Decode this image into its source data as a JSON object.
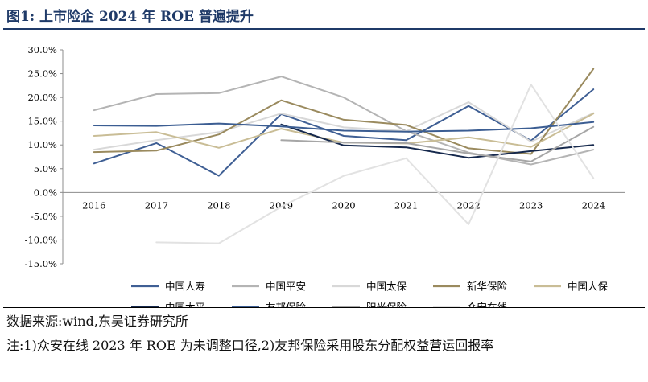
{
  "header": {
    "title": "图1:  上市险企 2024 年 ROE 普遍提升"
  },
  "notes": {
    "source": "数据来源:wind,东吴证券研究所",
    "footnote": "注:1)众安在线 2023 年 ROE 为未调整口径,2)友邦保险采用股东分配权益营运回报率"
  },
  "chart_data": {
    "type": "line",
    "title": "",
    "xlabel": "",
    "ylabel": "",
    "categories": [
      "2016",
      "2017",
      "2018",
      "2019",
      "2020",
      "2021",
      "2022",
      "2023",
      "2024"
    ],
    "ylim": [
      -15,
      30
    ],
    "yticks": [
      30,
      25,
      20,
      15,
      10,
      5,
      0,
      -5,
      -10,
      -15
    ],
    "ytick_labels": [
      "30.0%",
      "25.0%",
      "20.0%",
      "15.0%",
      "10.0%",
      "5.0%",
      "0.0%",
      "-5.0%",
      "-10.0%",
      "-15.0%"
    ],
    "grid": false,
    "legend_position": "bottom",
    "series": [
      {
        "name": "中国人寿",
        "color": "#3f5f94",
        "values": [
          6.1,
          10.4,
          3.5,
          16.5,
          11.9,
          11.0,
          18.2,
          10.9,
          21.7
        ]
      },
      {
        "name": "中国平安",
        "color": "#b4b4b4",
        "values": [
          17.3,
          20.7,
          20.9,
          24.4,
          20.0,
          12.9,
          8.4,
          5.9,
          9.0
        ]
      },
      {
        "name": "中国太保",
        "color": "#d8d8d8",
        "values": [
          9.0,
          11.0,
          12.7,
          16.6,
          13.7,
          12.9,
          19.0,
          10.7,
          16.7
        ]
      },
      {
        "name": "新华保险",
        "color": "#9a8a5e",
        "values": [
          8.5,
          8.8,
          12.2,
          19.4,
          15.3,
          14.2,
          9.3,
          8.1,
          26.0
        ]
      },
      {
        "name": "中国人保",
        "color": "#c9bd96",
        "values": [
          11.9,
          12.7,
          9.4,
          13.4,
          10.5,
          10.3,
          11.6,
          9.6,
          16.6
        ]
      },
      {
        "name": "中国太平",
        "color": "#16294d",
        "values": [
          null,
          null,
          null,
          14.3,
          9.9,
          9.5,
          7.3,
          8.7,
          10.0
        ]
      },
      {
        "name": "友邦保险",
        "color": "#3b5d92",
        "values": [
          14.1,
          14.0,
          14.5,
          13.9,
          13.0,
          12.8,
          13.0,
          13.5,
          14.8
        ]
      },
      {
        "name": "阳光保险",
        "color": "#a6a6a6",
        "values": [
          null,
          null,
          null,
          11.0,
          10.5,
          10.4,
          8.2,
          6.5,
          13.8
        ]
      },
      {
        "name": "众安在线",
        "color": "#e2e2e2",
        "values": [
          null,
          -10.5,
          -10.7,
          -3.0,
          3.5,
          7.2,
          -6.7,
          22.7,
          3.0
        ]
      }
    ]
  }
}
